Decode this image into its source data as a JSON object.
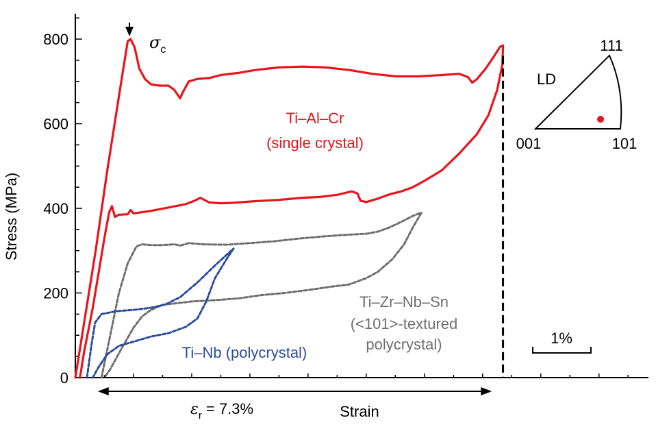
{
  "chart_data": {
    "type": "line",
    "xlabel": "Strain",
    "ylabel": "Stress (MPa)",
    "xlim": [
      0,
      9.85
    ],
    "ylim": [
      0,
      860
    ],
    "yticks": [
      0,
      200,
      400,
      600,
      800
    ],
    "colors": {
      "red": "#e8141b",
      "grey": "#6e6e6e",
      "blue": "#2b4c9b",
      "black": "#000000"
    },
    "series": [
      {
        "name": "Ti–Al–Cr",
        "label_lines": [
          "Ti–Al–Cr",
          "(single crystal)"
        ],
        "color": "#e8141b",
        "style": "solid",
        "points": [
          [
            0.0,
            0
          ],
          [
            0.35,
            300
          ],
          [
            0.55,
            490
          ],
          [
            0.75,
            665
          ],
          [
            0.9,
            795
          ],
          [
            0.95,
            800
          ],
          [
            1.02,
            780
          ],
          [
            1.1,
            730
          ],
          [
            1.2,
            705
          ],
          [
            1.3,
            693
          ],
          [
            1.45,
            690
          ],
          [
            1.6,
            690
          ],
          [
            1.7,
            680
          ],
          [
            1.8,
            660
          ],
          [
            1.85,
            675
          ],
          [
            1.95,
            700
          ],
          [
            2.1,
            706
          ],
          [
            2.3,
            708
          ],
          [
            2.5,
            715
          ],
          [
            2.8,
            720
          ],
          [
            3.1,
            727
          ],
          [
            3.5,
            733
          ],
          [
            3.9,
            735
          ],
          [
            4.3,
            733
          ],
          [
            4.7,
            727
          ],
          [
            5.1,
            718
          ],
          [
            5.5,
            712
          ],
          [
            5.9,
            712
          ],
          [
            6.3,
            715
          ],
          [
            6.6,
            718
          ],
          [
            6.75,
            710
          ],
          [
            6.82,
            697
          ],
          [
            6.9,
            705
          ],
          [
            7.05,
            730
          ],
          [
            7.2,
            760
          ],
          [
            7.3,
            782
          ],
          [
            7.35,
            785
          ],
          [
            7.34,
            740
          ],
          [
            7.25,
            680
          ],
          [
            7.1,
            620
          ],
          [
            6.9,
            575
          ],
          [
            6.6,
            530
          ],
          [
            6.3,
            490
          ],
          [
            6.0,
            465
          ],
          [
            5.8,
            450
          ],
          [
            5.6,
            440
          ],
          [
            5.4,
            433
          ],
          [
            5.2,
            423
          ],
          [
            5.0,
            415
          ],
          [
            4.9,
            418
          ],
          [
            4.85,
            435
          ],
          [
            4.75,
            440
          ],
          [
            4.5,
            432
          ],
          [
            4.2,
            427
          ],
          [
            3.9,
            425
          ],
          [
            3.5,
            420
          ],
          [
            3.1,
            417
          ],
          [
            2.7,
            413
          ],
          [
            2.5,
            412
          ],
          [
            2.3,
            414
          ],
          [
            2.15,
            425
          ],
          [
            2.05,
            418
          ],
          [
            1.9,
            410
          ],
          [
            1.6,
            402
          ],
          [
            1.3,
            394
          ],
          [
            1.0,
            388
          ],
          [
            0.95,
            396
          ],
          [
            0.9,
            386
          ],
          [
            0.75,
            385
          ],
          [
            0.68,
            380
          ],
          [
            0.63,
            405
          ],
          [
            0.58,
            390
          ],
          [
            0.5,
            330
          ],
          [
            0.3,
            165
          ],
          [
            0.15,
            60
          ],
          [
            0.08,
            0
          ]
        ]
      },
      {
        "name": "Ti–Zr–Nb–Sn",
        "label_lines": [
          "Ti–Zr–Nb–Sn",
          "(<101>-textured",
          "polycrystal)"
        ],
        "color": "#6e6e6e",
        "style": "dashed",
        "points": [
          [
            0.45,
            0
          ],
          [
            0.6,
            100
          ],
          [
            0.75,
            200
          ],
          [
            0.9,
            270
          ],
          [
            1.05,
            310
          ],
          [
            1.15,
            315
          ],
          [
            1.3,
            313
          ],
          [
            1.5,
            313
          ],
          [
            1.7,
            315
          ],
          [
            1.8,
            312
          ],
          [
            1.95,
            318
          ],
          [
            2.2,
            315
          ],
          [
            2.6,
            314
          ],
          [
            3.0,
            318
          ],
          [
            3.4,
            322
          ],
          [
            3.8,
            328
          ],
          [
            4.2,
            333
          ],
          [
            4.6,
            337
          ],
          [
            5.0,
            340
          ],
          [
            5.2,
            345
          ],
          [
            5.4,
            355
          ],
          [
            5.6,
            368
          ],
          [
            5.8,
            382
          ],
          [
            5.95,
            390
          ],
          [
            5.8,
            355
          ],
          [
            5.65,
            315
          ],
          [
            5.45,
            280
          ],
          [
            5.2,
            250
          ],
          [
            5.0,
            235
          ],
          [
            4.7,
            220
          ],
          [
            4.4,
            215
          ],
          [
            4.0,
            207
          ],
          [
            3.6,
            200
          ],
          [
            3.2,
            195
          ],
          [
            2.8,
            187
          ],
          [
            2.4,
            183
          ],
          [
            2.0,
            180
          ],
          [
            1.7,
            175
          ],
          [
            1.5,
            172
          ],
          [
            1.3,
            160
          ],
          [
            1.15,
            145
          ],
          [
            1.0,
            118
          ],
          [
            0.8,
            70
          ],
          [
            0.6,
            20
          ],
          [
            0.5,
            0
          ]
        ]
      },
      {
        "name": "Ti–Nb",
        "label_lines": [
          "Ti–Nb (polycrystal)"
        ],
        "color": "#2b4c9b",
        "style": "dashed",
        "points": [
          [
            0.2,
            0
          ],
          [
            0.28,
            80
          ],
          [
            0.34,
            130
          ],
          [
            0.45,
            150
          ],
          [
            0.7,
            157
          ],
          [
            1.0,
            160
          ],
          [
            1.3,
            165
          ],
          [
            1.55,
            173
          ],
          [
            1.8,
            190
          ],
          [
            2.1,
            225
          ],
          [
            2.4,
            265
          ],
          [
            2.6,
            290
          ],
          [
            2.72,
            305
          ],
          [
            2.6,
            280
          ],
          [
            2.4,
            235
          ],
          [
            2.25,
            180
          ],
          [
            2.1,
            140
          ],
          [
            1.9,
            120
          ],
          [
            1.6,
            105
          ],
          [
            1.3,
            97
          ],
          [
            1.0,
            85
          ],
          [
            0.75,
            75
          ],
          [
            0.55,
            55
          ],
          [
            0.4,
            25
          ],
          [
            0.3,
            0
          ]
        ]
      }
    ],
    "annotations": {
      "sigma_c": "σc",
      "sigma_main": "σ",
      "sigma_sub": "c",
      "sigma_c_x": 0.93,
      "sigma_c_stress": 800,
      "epsilon_r": "εr = 7.3%",
      "epsilon_main": "ε",
      "epsilon_sub": "r",
      "epsilon_rest": " = 7.3%",
      "epsilon_r_value": 7.3,
      "recoverable_start_x": 0.15,
      "recoverable_end_x": 7.3,
      "dashed_vertical_x": 7.35,
      "scale_bar_label": "1%",
      "scale_bar_length": 1
    },
    "ipf": {
      "title": "LD",
      "corners": [
        "001",
        "101",
        "111"
      ],
      "marker_color": "#e8141b"
    }
  }
}
